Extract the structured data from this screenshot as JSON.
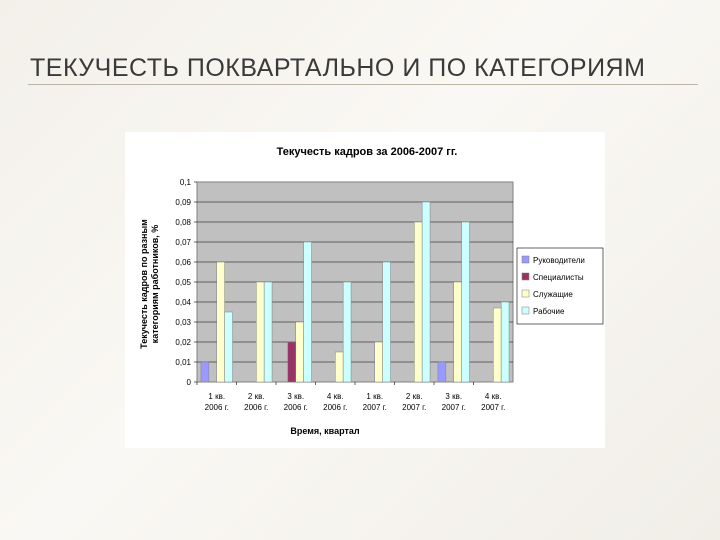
{
  "slide": {
    "title": "ТЕКУЧЕСТЬ ПОКВАРТАЛЬНО И ПО КАТЕГОРИЯМ"
  },
  "chart_data": {
    "type": "bar",
    "title": "Текучесть кадров за 2006-2007 гг.",
    "xlabel": "Время, квартал",
    "ylabel": [
      "Текучесть кадров по разным",
      "категориям работников, %"
    ],
    "ylim": [
      0,
      0.1
    ],
    "yticks": [
      "0,1",
      "0,09",
      "0,08",
      "0,07",
      "0,06",
      "0,05",
      "0,04",
      "0,03",
      "0,02",
      "0,01",
      "0"
    ],
    "grid": true,
    "legend_position": "right",
    "categories": [
      [
        "1 кв.",
        "2006 г."
      ],
      [
        "2 кв.",
        "2006 г."
      ],
      [
        "3 кв.",
        "2006 г."
      ],
      [
        "4 кв.",
        "2006 г."
      ],
      [
        "1 кв.",
        "2007 г."
      ],
      [
        "2 кв.",
        "2007 г."
      ],
      [
        "3 кв.",
        "2007 г."
      ],
      [
        "4 кв.",
        "2007 г."
      ]
    ],
    "series": [
      {
        "name": "Руководители",
        "color": "#9999ff",
        "values": [
          0.01,
          0,
          0,
          0,
          0,
          0,
          0.01,
          0
        ]
      },
      {
        "name": "Специалисты",
        "color": "#993366",
        "values": [
          0,
          0,
          0.02,
          0,
          0,
          0,
          0,
          0
        ]
      },
      {
        "name": "Служащие",
        "color": "#ffffcc",
        "values": [
          0.06,
          0.05,
          0.03,
          0.015,
          0.02,
          0.08,
          0.05,
          0.037
        ]
      },
      {
        "name": "Рабочие",
        "color": "#ccffff",
        "values": [
          0.035,
          0.05,
          0.07,
          0.05,
          0.06,
          0.09,
          0.08,
          0.04
        ]
      }
    ],
    "plot_background": "#c0c0c0"
  }
}
